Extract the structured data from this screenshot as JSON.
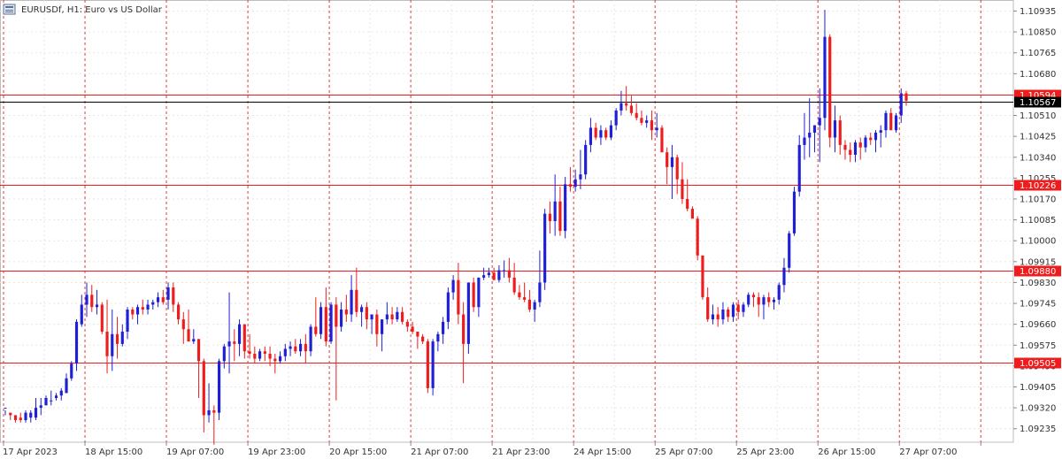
{
  "header": {
    "symbol_label": "EURUSDf, H1:  Euro vs US Dollar",
    "icon": "chart-window-icon"
  },
  "colors": {
    "bull": "#1f1fd6",
    "bear": "#ee1c1c",
    "level": "#ee1c1c",
    "grid": "#e6e6e6",
    "separator": "#e33a3a",
    "current_price": "#000000"
  },
  "chart_data": {
    "type": "candlestick",
    "timeframe": "H1",
    "ylim": [
      1.0918,
      1.1098
    ],
    "y_ticks": [
      "1.10935",
      "1.10850",
      "1.10765",
      "1.10680",
      "1.10594",
      "1.10510",
      "1.10425",
      "1.10340",
      "1.10255",
      "1.10170",
      "1.10085",
      "1.10000",
      "1.09915",
      "1.09830",
      "1.09745",
      "1.09660",
      "1.09575",
      "1.09490",
      "1.09405",
      "1.09320",
      "1.09235"
    ],
    "x_labels": [
      "17 Apr 2023",
      "18 Apr 15:00",
      "19 Apr 07:00",
      "19 Apr 23:00",
      "20 Apr 15:00",
      "21 Apr 07:00",
      "21 Apr 23:00",
      "24 Apr 15:00",
      "25 Apr 07:00",
      "25 Apr 23:00",
      "26 Apr 15:00",
      "27 Apr 07:00"
    ],
    "horizontal_levels": [
      {
        "price": 1.10594,
        "label": "1.10594"
      },
      {
        "price": 1.10226,
        "label": "1.10226"
      },
      {
        "price": 1.0988,
        "label": "1.09880"
      },
      {
        "price": 1.09505,
        "label": "1.09505"
      }
    ],
    "current_price": {
      "price": 1.10567,
      "label": "1.10567"
    },
    "candles": [
      [
        1.0932,
        1.0931,
        1.0929,
        1.0932
      ],
      [
        1.093,
        1.093,
        1.0927,
        1.0929
      ],
      [
        1.0929,
        1.0929,
        1.0926,
        1.0927
      ],
      [
        1.0928,
        1.093,
        1.0926,
        1.0927
      ],
      [
        1.0927,
        1.0931,
        1.0926,
        1.093
      ],
      [
        1.0928,
        1.0931,
        1.0926,
        1.093
      ],
      [
        1.0928,
        1.0936,
        1.0927,
        1.0932
      ],
      [
        1.0932,
        1.0936,
        1.0929,
        1.0933
      ],
      [
        1.0933,
        1.0937,
        1.0933,
        1.0936
      ],
      [
        1.0935,
        1.0939,
        1.0933,
        1.0935
      ],
      [
        1.0936,
        1.0938,
        1.0935,
        1.0937
      ],
      [
        1.0937,
        1.094,
        1.0935,
        1.0939
      ],
      [
        1.0938,
        1.0946,
        1.0938,
        1.0944
      ],
      [
        1.0944,
        1.0951,
        1.0943,
        1.095
      ],
      [
        1.095,
        1.0968,
        1.0947,
        1.0967
      ],
      [
        1.0966,
        1.0978,
        1.0965,
        1.0974
      ],
      [
        1.0974,
        1.0983,
        1.0969,
        1.0978
      ],
      [
        1.0978,
        1.0982,
        1.0971,
        1.0973
      ],
      [
        1.0973,
        1.098,
        1.097,
        1.0974
      ],
      [
        1.0974,
        1.0975,
        1.0962,
        1.0963
      ],
      [
        1.0963,
        1.0976,
        1.0946,
        1.0953
      ],
      [
        1.0953,
        1.0972,
        1.0947,
        1.0962
      ],
      [
        1.0962,
        1.0969,
        1.0952,
        1.0958
      ],
      [
        1.0958,
        1.0966,
        1.0957,
        1.0963
      ],
      [
        1.0963,
        1.0973,
        1.096,
        1.0972
      ],
      [
        1.0972,
        1.0973,
        1.0968,
        1.097
      ],
      [
        1.097,
        1.0974,
        1.0966,
        1.0973
      ],
      [
        1.0973,
        1.0976,
        1.097,
        1.0972
      ],
      [
        1.0972,
        1.0976,
        1.097,
        1.0974
      ],
      [
        1.0974,
        1.0976,
        1.0972,
        1.0975
      ],
      [
        1.0975,
        1.0979,
        1.0973,
        1.0977
      ],
      [
        1.0977,
        1.098,
        1.0974,
        1.0975
      ],
      [
        1.0976,
        1.0983,
        1.0972,
        1.0981
      ],
      [
        1.0981,
        1.0983,
        1.0971,
        1.0974
      ],
      [
        1.0974,
        1.0975,
        1.0966,
        1.0968
      ],
      [
        1.0968,
        1.0971,
        1.0958,
        1.0964
      ],
      [
        1.0964,
        1.0972,
        1.0959,
        1.0959
      ],
      [
        1.0959,
        1.0964,
        1.0958,
        1.096
      ],
      [
        1.096,
        1.096,
        1.0936,
        1.0951
      ],
      [
        1.0951,
        1.0952,
        1.0922,
        1.0929
      ],
      [
        1.0929,
        1.0942,
        1.0926,
        1.0931
      ],
      [
        1.0931,
        1.0933,
        1.0917,
        1.093
      ],
      [
        1.093,
        1.0952,
        1.0927,
        1.0951
      ],
      [
        1.0951,
        1.0958,
        1.0948,
        1.0957
      ],
      [
        1.0957,
        1.0979,
        1.0946,
        1.0959
      ],
      [
        1.0959,
        1.0964,
        1.0951,
        1.0958
      ],
      [
        1.0958,
        1.0968,
        1.0953,
        1.0966
      ],
      [
        1.0966,
        1.0966,
        1.0952,
        1.0955
      ],
      [
        1.0955,
        1.0962,
        1.0952,
        1.0954
      ],
      [
        1.0954,
        1.0957,
        1.095,
        1.0952
      ],
      [
        1.0952,
        1.0956,
        1.0951,
        1.0955
      ],
      [
        1.0955,
        1.0957,
        1.0951,
        1.0954
      ],
      [
        1.0954,
        1.0957,
        1.0949,
        1.0952
      ],
      [
        1.0952,
        1.0954,
        1.0946,
        1.0951
      ],
      [
        1.0951,
        1.0955,
        1.095,
        1.0953
      ],
      [
        1.0953,
        1.0958,
        1.0951,
        1.0956
      ],
      [
        1.0956,
        1.0959,
        1.0953,
        1.0957
      ],
      [
        1.0957,
        1.096,
        1.0954,
        1.0955
      ],
      [
        1.0955,
        1.096,
        1.0953,
        1.0958
      ],
      [
        1.0958,
        1.0962,
        1.095,
        1.0955
      ],
      [
        1.0955,
        1.0966,
        1.0953,
        1.0965
      ],
      [
        1.0965,
        1.0977,
        1.0961,
        1.0962
      ],
      [
        1.0962,
        1.0975,
        1.096,
        1.0973
      ],
      [
        1.0973,
        1.0981,
        1.0957,
        1.0959
      ],
      [
        1.0959,
        1.0975,
        1.0958,
        1.0974
      ],
      [
        1.0974,
        1.0977,
        1.0935,
        1.0965
      ],
      [
        1.0965,
        1.0975,
        1.0963,
        1.0972
      ],
      [
        1.0972,
        1.0978,
        1.0967,
        1.097
      ],
      [
        1.097,
        1.0986,
        1.0967,
        1.098
      ],
      [
        1.098,
        1.0989,
        1.0969,
        1.0971
      ],
      [
        1.0971,
        1.0974,
        1.0965,
        1.0973
      ],
      [
        1.0973,
        1.0975,
        1.0964,
        1.0968
      ],
      [
        1.0968,
        1.097,
        1.0962,
        1.097
      ],
      [
        1.097,
        1.0972,
        1.0957,
        1.0962
      ],
      [
        1.0962,
        1.0968,
        1.0955,
        1.0968
      ],
      [
        1.0968,
        1.0975,
        1.0966,
        1.097
      ],
      [
        1.097,
        1.0973,
        1.0966,
        1.0968
      ],
      [
        1.0968,
        1.0973,
        1.0967,
        1.0971
      ],
      [
        1.0971,
        1.0973,
        1.0966,
        1.0967
      ],
      [
        1.0967,
        1.0968,
        1.0963,
        1.0965
      ],
      [
        1.0965,
        1.0967,
        1.0962,
        1.0963
      ],
      [
        1.0963,
        1.0963,
        1.0956,
        1.0961
      ],
      [
        1.0961,
        1.0962,
        1.0958,
        1.0959
      ],
      [
        1.0959,
        1.096,
        1.0938,
        1.094
      ],
      [
        1.094,
        1.096,
        1.0937,
        1.0959
      ],
      [
        1.0959,
        1.0963,
        1.0955,
        1.0962
      ],
      [
        1.0962,
        1.0969,
        1.0958,
        1.0967
      ],
      [
        1.0967,
        1.0981,
        1.0964,
        1.0979
      ],
      [
        1.0979,
        1.0986,
        1.0976,
        1.0984
      ],
      [
        1.0984,
        1.0991,
        1.0966,
        1.097
      ],
      [
        1.097,
        1.0975,
        1.0942,
        1.0958
      ],
      [
        1.0958,
        1.0983,
        1.0954,
        1.0983
      ],
      [
        1.0983,
        1.0985,
        1.0971,
        1.0973
      ],
      [
        1.0973,
        1.0985,
        1.0969,
        1.0985
      ],
      [
        1.0985,
        1.0989,
        1.0984,
        1.0986
      ],
      [
        1.0986,
        1.0989,
        1.0985,
        1.0987
      ],
      [
        1.0987,
        1.0989,
        1.0984,
        1.0984
      ],
      [
        1.0984,
        1.099,
        1.0983,
        1.0988
      ],
      [
        1.0988,
        1.0992,
        1.0985,
        1.0988
      ],
      [
        1.0988,
        1.0993,
        1.0983,
        1.0985
      ],
      [
        1.0985,
        1.0991,
        1.0978,
        1.0979
      ],
      [
        1.0979,
        1.0982,
        1.0976,
        1.0977
      ],
      [
        1.0977,
        1.0983,
        1.0975,
        1.0976
      ],
      [
        1.0976,
        1.098,
        1.0971,
        1.0972
      ],
      [
        1.0972,
        1.0976,
        1.0967,
        1.0975
      ],
      [
        1.0975,
        1.0996,
        1.0973,
        1.0983
      ],
      [
        1.0983,
        1.1013,
        1.098,
        1.1011
      ],
      [
        1.1011,
        1.1016,
        1.1003,
        1.1008
      ],
      [
        1.1008,
        1.1027,
        1.1002,
        1.1016
      ],
      [
        1.1016,
        1.1022,
        1.1002,
        1.1004
      ],
      [
        1.1004,
        1.1026,
        1.1001,
        1.1023
      ],
      [
        1.1023,
        1.103,
        1.102,
        1.1022
      ],
      [
        1.1022,
        1.1029,
        1.102,
        1.1025
      ],
      [
        1.1025,
        1.1037,
        1.1021,
        1.1027
      ],
      [
        1.1027,
        1.1041,
        1.1025,
        1.1039
      ],
      [
        1.1039,
        1.105,
        1.1036,
        1.1046
      ],
      [
        1.1046,
        1.1048,
        1.1041,
        1.1042
      ],
      [
        1.1042,
        1.1047,
        1.1039,
        1.1045
      ],
      [
        1.1045,
        1.1046,
        1.1041,
        1.1042
      ],
      [
        1.1042,
        1.1049,
        1.1041,
        1.1047
      ],
      [
        1.1047,
        1.1054,
        1.1045,
        1.1053
      ],
      [
        1.1053,
        1.1061,
        1.1051,
        1.1056
      ],
      [
        1.1056,
        1.1063,
        1.1053,
        1.1055
      ],
      [
        1.1055,
        1.1059,
        1.1051,
        1.1052
      ],
      [
        1.1052,
        1.1056,
        1.1049,
        1.105
      ],
      [
        1.105,
        1.1053,
        1.1047,
        1.1048
      ],
      [
        1.1048,
        1.1051,
        1.1046,
        1.1049
      ],
      [
        1.1049,
        1.1053,
        1.1041,
        1.1045
      ],
      [
        1.1045,
        1.1052,
        1.1042,
        1.1046
      ],
      [
        1.1046,
        1.1047,
        1.1036,
        1.1036
      ],
      [
        1.1036,
        1.1038,
        1.1023,
        1.103
      ],
      [
        1.103,
        1.1039,
        1.1017,
        1.1034
      ],
      [
        1.1034,
        1.1035,
        1.1019,
        1.1025
      ],
      [
        1.1025,
        1.1032,
        1.1015,
        1.1017
      ],
      [
        1.1017,
        1.1025,
        1.1012,
        1.1013
      ],
      [
        1.1013,
        1.1014,
        1.1009,
        1.1009
      ],
      [
        1.1009,
        1.101,
        1.0992,
        1.0994
      ],
      [
        1.0994,
        1.0994,
        1.0976,
        1.0977
      ],
      [
        1.0977,
        1.0981,
        1.0967,
        1.0968
      ],
      [
        1.0968,
        1.0974,
        1.0966,
        1.097
      ],
      [
        1.097,
        1.0973,
        1.0965,
        1.0968
      ],
      [
        1.0968,
        1.0975,
        1.0966,
        1.0972
      ],
      [
        1.0972,
        1.0973,
        1.0967,
        1.0969
      ],
      [
        1.0969,
        1.0975,
        1.0967,
        1.0974
      ],
      [
        1.0974,
        1.0976,
        1.0968,
        1.0971
      ],
      [
        1.0971,
        1.0975,
        1.0969,
        1.0974
      ],
      [
        1.0974,
        1.0979,
        1.0973,
        1.0978
      ],
      [
        1.0978,
        1.0979,
        1.0973,
        1.0977
      ],
      [
        1.0977,
        1.0979,
        1.0969,
        1.0974
      ],
      [
        1.0974,
        1.0978,
        1.0968,
        1.0977
      ],
      [
        1.0977,
        1.0979,
        1.0973,
        1.0975
      ],
      [
        1.0975,
        1.0977,
        1.0972,
        1.0976
      ],
      [
        1.0976,
        1.0983,
        1.0974,
        1.0982
      ],
      [
        1.0982,
        1.0993,
        1.0979,
        1.0989
      ],
      [
        1.0989,
        1.1004,
        1.0987,
        1.1003
      ],
      [
        1.1003,
        1.1022,
        1.1002,
        1.102
      ],
      [
        1.102,
        1.1043,
        1.1018,
        1.1039
      ],
      [
        1.1039,
        1.1052,
        1.1033,
        1.1042
      ],
      [
        1.1042,
        1.1058,
        1.1034,
        1.1044
      ],
      [
        1.1044,
        1.1047,
        1.1036,
        1.1047
      ],
      [
        1.1047,
        1.1062,
        1.1032,
        1.105
      ],
      [
        1.105,
        1.1094,
        1.1045,
        1.1083
      ],
      [
        1.1083,
        1.1084,
        1.1038,
        1.1042
      ],
      [
        1.1042,
        1.1055,
        1.1036,
        1.1049
      ],
      [
        1.1049,
        1.1051,
        1.1035,
        1.1039
      ],
      [
        1.1039,
        1.1041,
        1.1033,
        1.1037
      ],
      [
        1.1037,
        1.104,
        1.1032,
        1.1035
      ],
      [
        1.1035,
        1.1041,
        1.1032,
        1.104
      ],
      [
        1.104,
        1.1042,
        1.1033,
        1.1038
      ],
      [
        1.1038,
        1.1043,
        1.1036,
        1.1042
      ],
      [
        1.1042,
        1.1044,
        1.1039,
        1.1041
      ],
      [
        1.1041,
        1.1045,
        1.1036,
        1.1044
      ],
      [
        1.1044,
        1.1047,
        1.1038,
        1.1045
      ],
      [
        1.1045,
        1.1053,
        1.1042,
        1.1052
      ],
      [
        1.1052,
        1.1054,
        1.1045,
        1.1045
      ],
      [
        1.1045,
        1.1052,
        1.1044,
        1.1051
      ],
      [
        1.1051,
        1.1062,
        1.1048,
        1.106
      ],
      [
        1.106,
        1.1061,
        1.1055,
        1.1057
      ]
    ]
  }
}
